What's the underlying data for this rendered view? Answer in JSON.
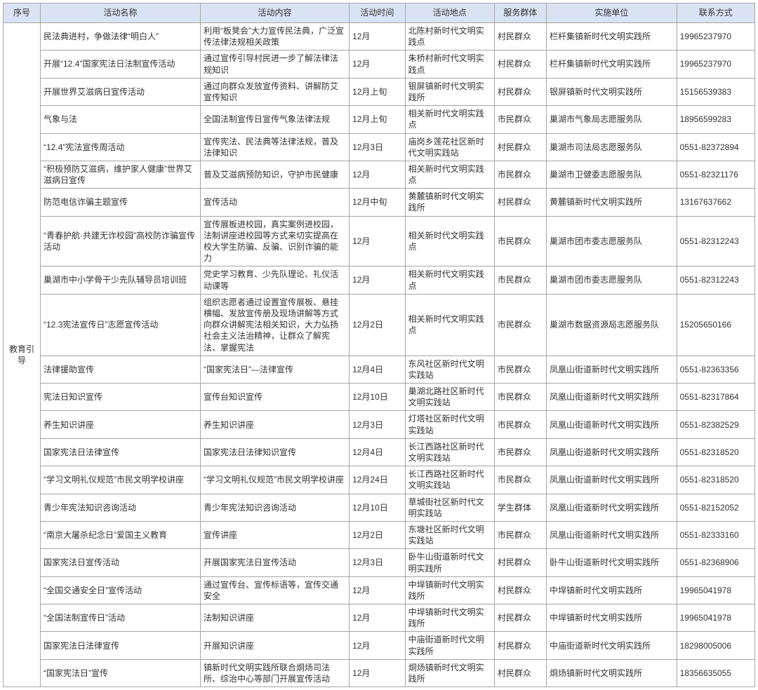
{
  "headers": {
    "seq": "序号",
    "name": "活动名称",
    "content": "活动内容",
    "time": "活动时间",
    "place": "活动地点",
    "group": "服务群体",
    "unit": "实施单位",
    "phone": "联系方式"
  },
  "category": "教育引导",
  "rows": [
    {
      "name": "民法典进村，争做法律“明白人”",
      "content": "利用“板凳会”大力宣传民法典，广泛宣传法律法规相关政策",
      "time": "12月",
      "place": "北陈村新时代文明实践点",
      "group": "村民群众",
      "unit": "栏杆集镇新时代文明实践所",
      "phone": "19965237970"
    },
    {
      "name": "开展“12.4”国家宪法日法制宣传活动",
      "content": "通过宣传引导村民进一步了解法律法规知识",
      "time": "12月",
      "place": "朱桥村新时代文明实践点",
      "group": "村民群众",
      "unit": "栏杆集镇新时代文明实践所",
      "phone": "19965237970"
    },
    {
      "name": "开展世界艾滋病日宣传活动",
      "content": "通过向群众发放宣传资料、讲解防艾宣传知识",
      "time": "12月上旬",
      "place": "银屏镇新时代文明实践所",
      "group": "村民群众",
      "unit": "银屏镇新时代文明实践所",
      "phone": "15156539383"
    },
    {
      "name": "气象与法",
      "content": "全国法制宣传日宣传气象法律法规",
      "time": "12月上旬",
      "place": "相关新时代文明实践点",
      "group": "市民群众",
      "unit": "巢湖市气象局志愿服务队",
      "phone": "18956599283"
    },
    {
      "name": "“12.4”宪法宣传周活动",
      "content": "宣传宪法、民法典等法律法规，普及法律知识",
      "time": "12月3日",
      "place": "庙岗乡莲花社区新时代文明实践站",
      "group": "村民群众",
      "unit": "巢湖市司法局志愿服务队",
      "phone": "0551-82372894"
    },
    {
      "name": "“积极预防艾滋病，维护家人健康”世界艾滋病日宣传",
      "content": "普及艾滋病预防知识，守护市民健康",
      "time": "12月",
      "place": "相关新时代文明实践点",
      "group": "市民群众",
      "unit": "巢湖市卫健委志愿服务队",
      "phone": "0551-82321176"
    },
    {
      "name": "防范电信诈骗主题宣传",
      "content": "宣传活动",
      "time": "12月中旬",
      "place": "黄麓镇新时代文明实践所",
      "group": "村民群众",
      "unit": "黄麓镇新时代文明实践所",
      "phone": "13167637662"
    },
    {
      "name": "“青春护航·共建无诈校园”高校防诈骗宣传活动",
      "content": "宣传展板进校园，真实案例进校园，法制讲座进校园等方式来切实提高在校大学生防骗、反骗、识别诈骗的能力",
      "time": "12月",
      "place": "相关新时代文明实践点",
      "group": "市民群众",
      "unit": "巢湖市团市委志愿服务队",
      "phone": "0551-82312243"
    },
    {
      "name": "巢湖市中小学骨干少先队辅导员培训班",
      "content": "党史学习教育、少先队理论、礼仪活动课等",
      "time": "12月",
      "place": "相关新时代文明实践点",
      "group": "市民群众",
      "unit": "巢湖市团市委志愿服务队",
      "phone": "0551-82312243"
    },
    {
      "name": "“12.3宪法宣传日”志愿宣传活动",
      "content": "组织志愿者通过设置宣传展板、悬挂横幅、发放宣传册及现场讲解等方式向群众讲解宪法相关知识，大力弘扬社会主义法治精神，让群众了解宪法、掌握宪法",
      "time": "12月2日",
      "place": "相关新时代文明实践点",
      "group": "市民群众",
      "unit": "巢湖市数据资源局志愿服务队",
      "phone": "15205650166"
    },
    {
      "name": "法律援助宣传",
      "content": "“国家宪法日”—法律宣传",
      "time": "12月4日",
      "place": "东风社区新时代文明实践站",
      "group": "市民群众",
      "unit": "凤凰山街道新时代文明实践所",
      "phone": "0551-82363356"
    },
    {
      "name": "宪法日知识宣传",
      "content": "宣传台知识宣传",
      "time": "12月10日",
      "place": "巢湖北路社区新时代文明实践站",
      "group": "市民群众",
      "unit": "凤凰山街道新时代文明实践所",
      "phone": "0551-82317864"
    },
    {
      "name": "养生知识讲座",
      "content": "养生知识讲座",
      "time": "12月3日",
      "place": "灯塔社区新时代文明实践站",
      "group": "市民群众",
      "unit": "凤凰山街道新时代文明实践所",
      "phone": "0551-82382529"
    },
    {
      "name": "国家宪法日法律宣传",
      "content": "国家宪法日法律知识宣传",
      "time": "12月4日",
      "place": "长江西路社区新时代文明实践站",
      "group": "市民群众",
      "unit": "凤凰山街道新时代文明实践所",
      "phone": "0551-82318520"
    },
    {
      "name": "“学习文明礼仪规范”市民文明学校讲座",
      "content": "“学习文明礼仪规范”市民文明学校讲座",
      "time": "12月24日",
      "place": "长江西路社区新时代文明实践站",
      "group": "市民群众",
      "unit": "凤凰山街道新时代文明实践所",
      "phone": "0551-82318520"
    },
    {
      "name": "青少年宪法知识咨询活动",
      "content": "青少年宪法知识咨询活动",
      "time": "12月10日",
      "place": "草城街社区新时代文明实践站",
      "group": "学生群体",
      "unit": "凤凰山街道新时代文明实践所",
      "phone": "0551-82152052"
    },
    {
      "name": "“南京大屠杀纪念日”爱国主义教育",
      "content": "宣传讲座",
      "time": "12月2日",
      "place": "东塘社区新时代文明实践站",
      "group": "市民群众",
      "unit": "凤凰山街道新时代文明实践所",
      "phone": "0551-82333160"
    },
    {
      "name": "国家宪法日宣传活动",
      "content": "开展国家宪法日宣传活动",
      "time": "12月3日",
      "place": "卧牛山街道新时代文明实践所",
      "group": "村民群众",
      "unit": "卧牛山街道新时代文明实践所",
      "phone": "0551-82368906"
    },
    {
      "name": "“全国交通安全日”宣传活动",
      "content": "通过宣传台、宣传标语等，宣传交通安全",
      "time": "12月",
      "place": "中垾镇新时代文明实践所",
      "group": "村民群众",
      "unit": "中垾镇新时代文明实践所",
      "phone": "19965041978"
    },
    {
      "name": "“全国法制宣传日”活动",
      "content": "法制知识讲座",
      "time": "12月",
      "place": "中垾镇新时代文明实践所",
      "group": "村民群众",
      "unit": "中垾镇新时代文明实践所",
      "phone": "19965041978"
    },
    {
      "name": "国家宪法日法律宣传",
      "content": "开展知识讲座",
      "time": "12月",
      "place": "中庙街道新时代文明实践所",
      "group": "村民群众",
      "unit": "中庙街道新时代文明实践所",
      "phone": "18298005006"
    },
    {
      "name": "“国家宪法日”宣传",
      "content": "镇新时代文明实践所联合烔炀司法所、综治中心等部门开展宣传活动",
      "time": "12月",
      "place": "烔炀镇新时代文明实践所",
      "group": "村民群众",
      "unit": "烔炀镇新时代文明实践所",
      "phone": "18356635055"
    }
  ]
}
